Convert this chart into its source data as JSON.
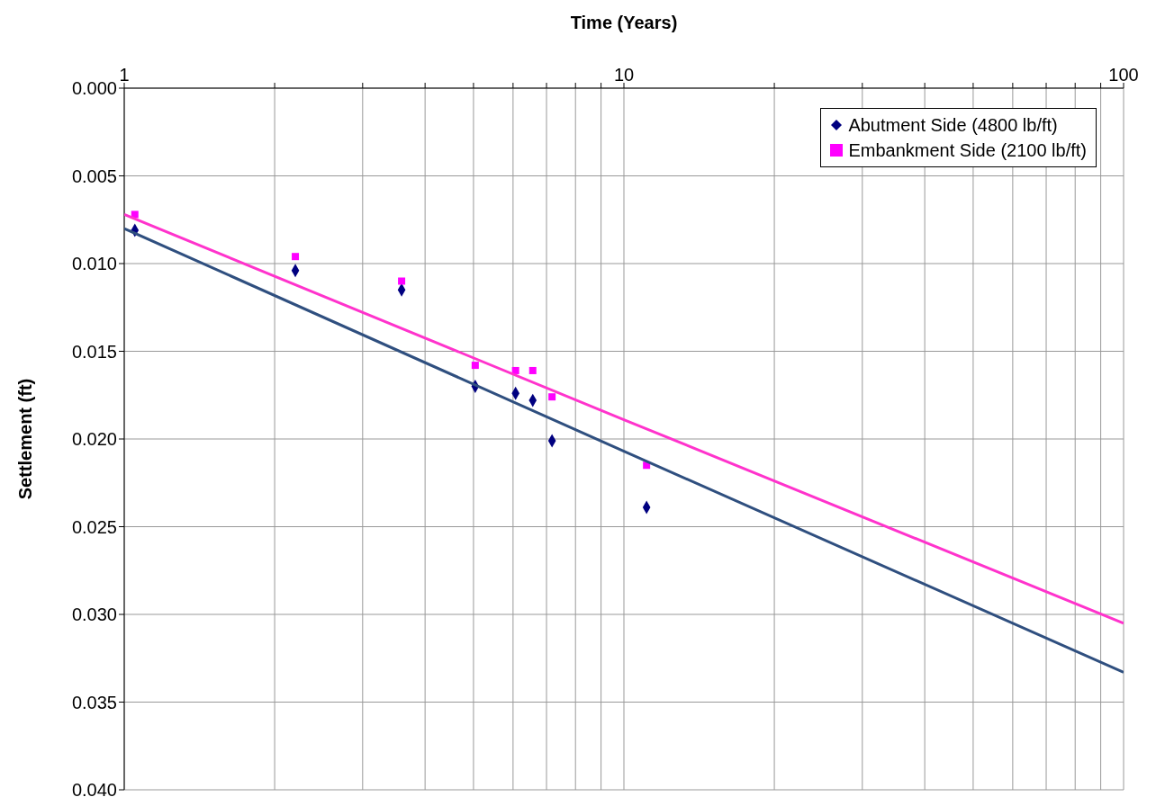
{
  "chart_data": {
    "type": "scatter",
    "xlabel": "Time (Years)",
    "ylabel": "Settlement (ft)",
    "log": "x",
    "xlim": [
      1,
      100
    ],
    "xticks": [
      1,
      {
        "value": 2,
        "label": null
      },
      {
        "value": 3,
        "label": null
      },
      {
        "value": 4,
        "label": null
      },
      {
        "value": 5,
        "label": null
      },
      {
        "value": 6,
        "label": null
      },
      {
        "value": 7,
        "label": null
      },
      {
        "value": 8,
        "label": null
      },
      {
        "value": 9,
        "label": null
      },
      10,
      {
        "value": 20,
        "label": null
      },
      {
        "value": 30,
        "label": null
      },
      {
        "value": 40,
        "label": null
      },
      {
        "value": 50,
        "label": null
      },
      {
        "value": 60,
        "label": null
      },
      {
        "value": 70,
        "label": null
      },
      {
        "value": 80,
        "label": null
      },
      {
        "value": 90,
        "label": null
      },
      100
    ],
    "ylim": [
      0.04,
      0
    ],
    "yticks": [
      {
        "value": 0,
        "label": "0.000"
      },
      {
        "value": 0.005,
        "label": "0.005"
      },
      {
        "value": 0.01,
        "label": "0.010"
      },
      {
        "value": 0.015,
        "label": "0.015"
      },
      {
        "value": 0.02,
        "label": "0.020"
      },
      {
        "value": 0.025,
        "label": "0.025"
      },
      {
        "value": 0.03,
        "label": "0.030"
      },
      {
        "value": 0.035,
        "label": "0.035"
      },
      {
        "value": 0.04,
        "label": "0.040"
      }
    ],
    "grid": true,
    "legend": "top right",
    "series": [
      {
        "name": "Abutment Side (4800 lb/ft)",
        "color": "#000080",
        "marker": "diamond",
        "x": [
          1.05,
          2.2,
          3.59,
          5.04,
          6.07,
          6.57,
          7.18,
          11.1
        ],
        "values": [
          0.0081,
          0.0104,
          0.0115,
          0.017,
          0.0174,
          0.0178,
          0.0201,
          0.0239
        ]
      },
      {
        "name": "Embankment Side (2100 lb/ft)",
        "color": "#ff00ff",
        "marker": "square",
        "x": [
          1.05,
          2.2,
          3.59,
          5.04,
          6.07,
          6.57,
          7.18,
          11.1
        ],
        "values": [
          0.0072,
          0.0096,
          0.011,
          0.0158,
          0.0161,
          0.0161,
          0.0176,
          0.0215
        ]
      },
      {
        "type": "line",
        "color": "#2f4f7f",
        "x": [
          1,
          10,
          100
        ],
        "values": [
          0.008,
          0.0207,
          0.0333
        ]
      },
      {
        "type": "line",
        "color": "#ff33cc",
        "x": [
          1,
          10,
          100
        ],
        "values": [
          0.0072,
          0.0189,
          0.0305
        ]
      }
    ]
  }
}
